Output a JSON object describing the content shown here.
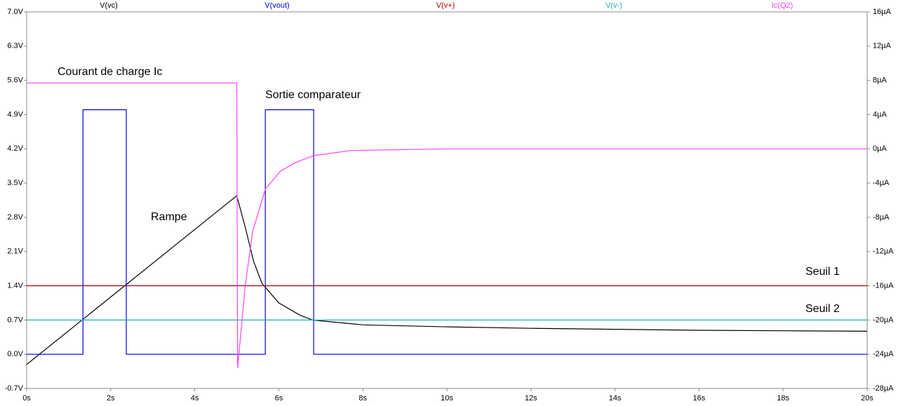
{
  "chart_data": {
    "type": "line",
    "xlim": [
      0,
      20
    ],
    "xticks": [
      {
        "value": 0,
        "label": "0s"
      },
      {
        "value": 2,
        "label": "2s"
      },
      {
        "value": 4,
        "label": "4s"
      },
      {
        "value": 6,
        "label": "6s"
      },
      {
        "value": 8,
        "label": "8s"
      },
      {
        "value": 10,
        "label": "10s"
      },
      {
        "value": 12,
        "label": "12s"
      },
      {
        "value": 14,
        "label": "14s"
      },
      {
        "value": 16,
        "label": "16s"
      },
      {
        "value": 18,
        "label": "18s"
      },
      {
        "value": 20,
        "label": "20s"
      }
    ],
    "ylim": [
      -0.7,
      7.0
    ],
    "yticks": [
      {
        "value": -0.7,
        "label": "-0.7V"
      },
      {
        "value": 0,
        "label": "0.0V"
      },
      {
        "value": 0.7,
        "label": "0.7V"
      },
      {
        "value": 1.4,
        "label": "1.4V"
      },
      {
        "value": 2.1,
        "label": "2.1V"
      },
      {
        "value": 2.8,
        "label": "2.8V"
      },
      {
        "value": 3.5,
        "label": "3.5V"
      },
      {
        "value": 4.2,
        "label": "4.2V"
      },
      {
        "value": 4.9,
        "label": "4.9V"
      },
      {
        "value": 5.6,
        "label": "5.6V"
      },
      {
        "value": 6.3,
        "label": "6.3V"
      },
      {
        "value": 7.0,
        "label": "7.0V"
      }
    ],
    "y2lim": [
      -28,
      16
    ],
    "y2ticks": [
      {
        "value": -28,
        "label": "-28µA"
      },
      {
        "value": -24,
        "label": "-24µA"
      },
      {
        "value": -20,
        "label": "-20µA"
      },
      {
        "value": -16,
        "label": "-16µA"
      },
      {
        "value": -12,
        "label": "-12µA"
      },
      {
        "value": -8,
        "label": "-8µA"
      },
      {
        "value": -4,
        "label": "-4µA"
      },
      {
        "value": 0,
        "label": "0µA"
      },
      {
        "value": 4,
        "label": "4µA"
      },
      {
        "value": 8,
        "label": "8µA"
      },
      {
        "value": 12,
        "label": "12µA"
      },
      {
        "value": 16,
        "label": "16µA"
      }
    ],
    "grid": false,
    "series": [
      {
        "name": "V(vc)",
        "color": "#000000",
        "x": [
          0,
          5,
          5.2,
          5.4,
          5.6,
          6,
          6.5,
          6.8,
          8,
          10,
          12,
          14,
          16,
          18,
          20
        ],
        "values": [
          -0.21,
          3.24,
          2.6,
          1.9,
          1.45,
          1.05,
          0.8,
          0.7,
          0.6,
          0.56,
          0.53,
          0.51,
          0.49,
          0.48,
          0.47
        ]
      },
      {
        "name": "V(vout)",
        "color": "#0000e0",
        "x": [
          0,
          1.34,
          1.34,
          2.37,
          2.37,
          5.68,
          5.68,
          6.83,
          6.83,
          20
        ],
        "values": [
          0,
          0,
          5.0,
          5.0,
          0,
          0,
          5.0,
          5.0,
          0,
          0
        ]
      },
      {
        "name": "V(v+)",
        "color": "#b00000",
        "x": [
          0,
          20
        ],
        "values": [
          1.4,
          1.4
        ]
      },
      {
        "name": "V(v-)",
        "color": "#20b0b0",
        "x": [
          0,
          20
        ],
        "values": [
          0.7,
          0.7
        ]
      },
      {
        "name": "Ic(Q2)",
        "color": "#ff40ff",
        "axis": "y2",
        "x": [
          0,
          5,
          5.02,
          5.2,
          5.38,
          5.68,
          6.04,
          6.4,
          6.83,
          7.71,
          10,
          20
        ],
        "values": [
          7.7,
          7.7,
          -25.6,
          -16,
          -9.6,
          -4.7,
          -2.6,
          -1.6,
          -0.8,
          -0.2,
          0,
          0
        ]
      }
    ],
    "annotations": [
      "Courant de charge Ic",
      "Sortie comparateur",
      "Rampe",
      "Seuil 1",
      "Seuil 2"
    ]
  }
}
